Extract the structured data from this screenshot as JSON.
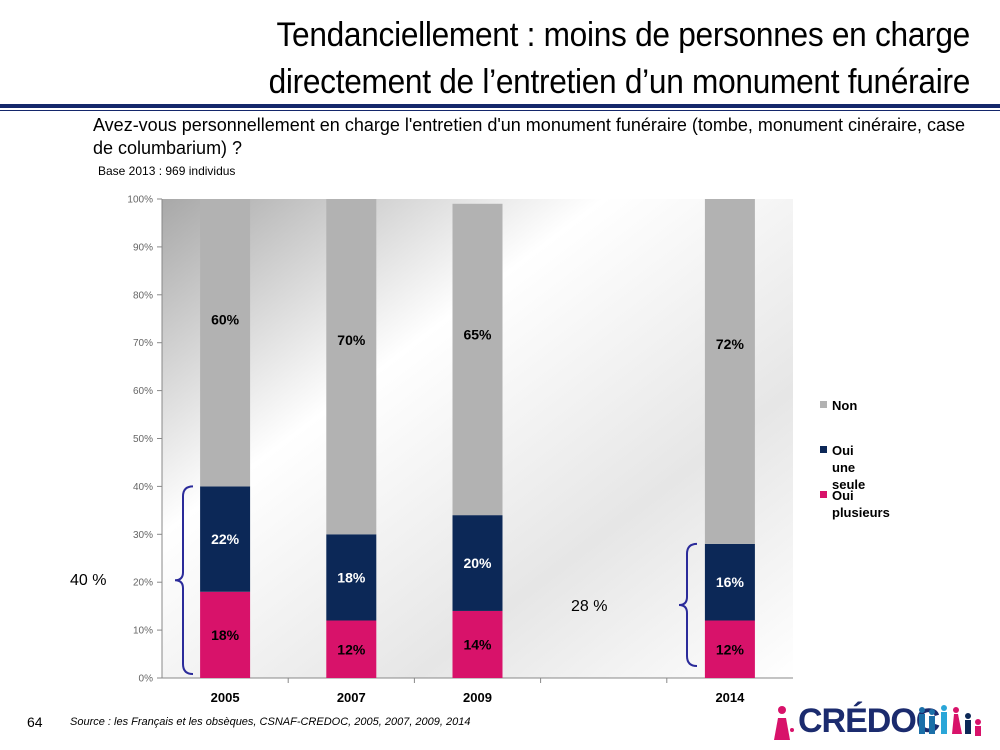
{
  "title_line1": "Tendanciellement : moins de personnes en charge",
  "title_line2": "directement de l’entretien d’un monument funéraire",
  "question": "Avez-vous personnellement en charge l'entretien d'un monument funéraire (tombe, monument cinéraire, case de columbarium) ?",
  "base": "Base 2013 : 969 individus",
  "page_number": "64",
  "source": "Source : les Français et les obsèques, CSNAF-CREDOC, 2005, 2007, 2009, 2014",
  "logo_text": "CRÉDOC",
  "bracket_labels": [
    "40 %",
    "28 %"
  ],
  "colors": {
    "non": "#b2b2b2",
    "oui_une": "#0c2857",
    "oui_plus": "#d8126a",
    "rule": "#14276b",
    "bracket": "#2b2b9a"
  },
  "chart_data": {
    "type": "bar",
    "stacked": true,
    "categories": [
      "2005",
      "2007",
      "2009",
      "2014"
    ],
    "series": [
      {
        "name": "Oui plusieurs",
        "values": [
          18,
          12,
          14,
          12
        ]
      },
      {
        "name": "Oui une seule",
        "values": [
          22,
          18,
          20,
          16
        ]
      },
      {
        "name": "Non",
        "values": [
          60,
          70,
          65,
          72
        ]
      }
    ],
    "value_labels": {
      "Oui plusieurs": [
        "18%",
        "12%",
        "14%",
        "12%"
      ],
      "Oui une seule": [
        "22%",
        "18%",
        "20%",
        "16%"
      ],
      "Non": [
        "60%",
        "70%",
        "65%",
        "72%"
      ]
    },
    "yticks": [
      "0%",
      "10%",
      "20%",
      "30%",
      "40%",
      "50%",
      "60%",
      "70%",
      "80%",
      "90%",
      "100%"
    ],
    "ylim": [
      0,
      100
    ],
    "legend": [
      {
        "line1": "Non",
        "line2": ""
      },
      {
        "line1": "Oui une",
        "line2": "seule"
      },
      {
        "line1": "Oui",
        "line2": "plusieurs"
      }
    ],
    "legend_position": "right"
  }
}
